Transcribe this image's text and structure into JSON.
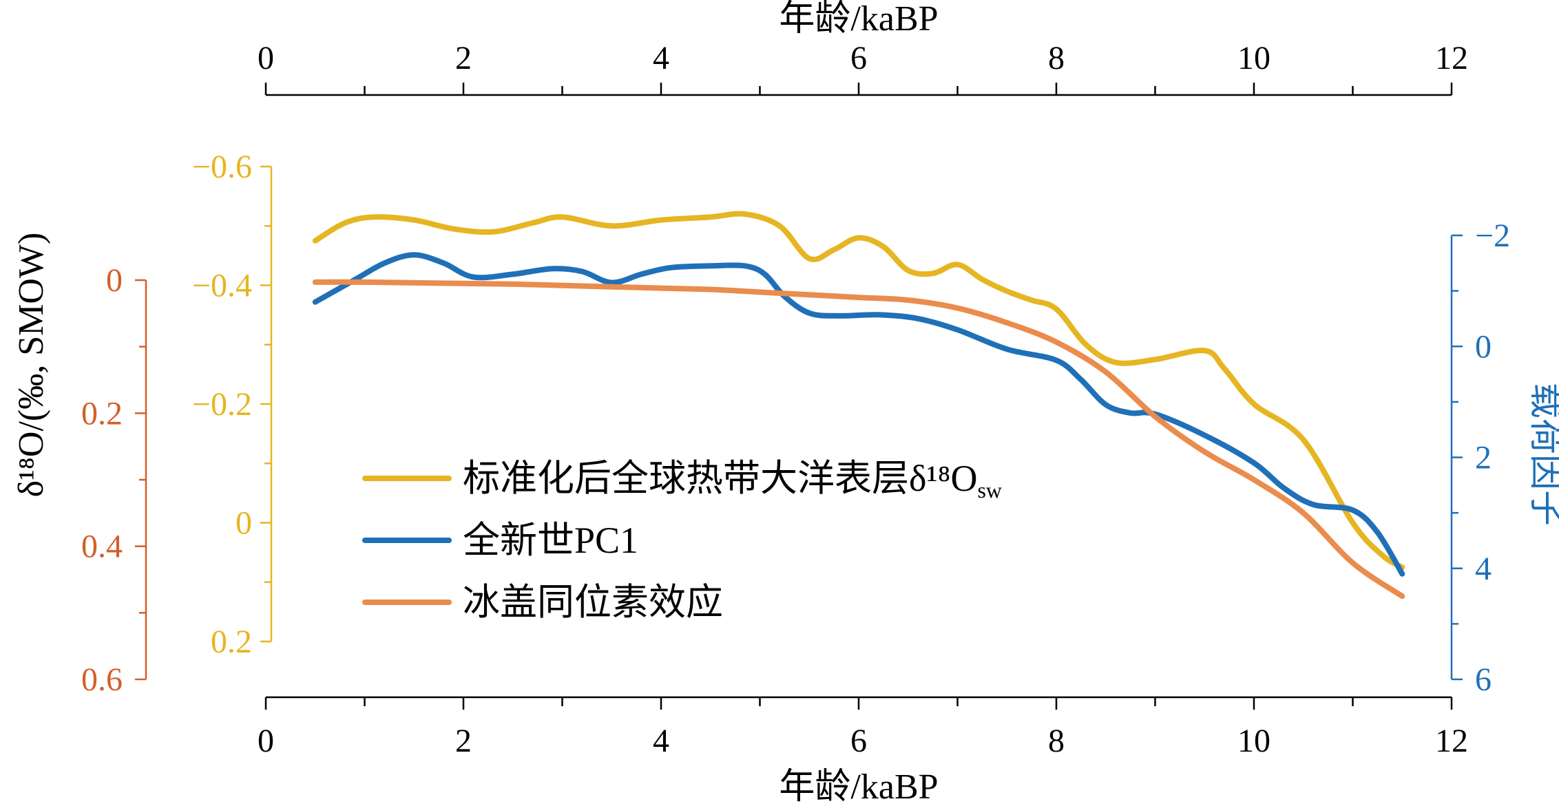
{
  "chart_data": {
    "type": "line",
    "x_axis": {
      "label": "年龄/kaBP",
      "range": [
        0,
        12
      ],
      "ticks": [
        0,
        2,
        4,
        6,
        8,
        10,
        12
      ]
    },
    "y_axes": {
      "ice": {
        "color": "#d35f2a",
        "range": [
          0,
          0.6
        ],
        "ticks": [
          0,
          0.2,
          0.4,
          0.6
        ],
        "tick_labels": [
          "0",
          "0.2",
          "0.4",
          "0.6"
        ],
        "inverted": true
      },
      "sst": {
        "color": "#e6b522",
        "range": [
          -0.6,
          0.2
        ],
        "ticks": [
          -0.6,
          -0.4,
          -0.2,
          0,
          0.2
        ],
        "tick_labels": [
          "−0.6",
          "−0.4",
          "−0.2",
          "0",
          "0.2"
        ],
        "inverted": true
      },
      "pc": {
        "color": "#1f70b8",
        "range": [
          -2,
          6
        ],
        "ticks": [
          -2,
          0,
          2,
          4,
          6
        ],
        "tick_labels": [
          "−2",
          "0",
          "2",
          "4",
          "6"
        ],
        "inverted": true,
        "label": "载荷因子"
      }
    },
    "shared_ylabel": "δ¹⁸O/(‰, SMOW)",
    "series": [
      {
        "key": "sst",
        "axis": "sst",
        "color": "#e6b522",
        "x": [
          0.5,
          0.8,
          1.1,
          1.5,
          1.9,
          2.3,
          2.7,
          3.0,
          3.5,
          4.0,
          4.5,
          4.85,
          5.2,
          5.5,
          5.75,
          6.0,
          6.25,
          6.5,
          6.75,
          7.0,
          7.25,
          7.5,
          7.75,
          8.0,
          8.3,
          8.6,
          9.0,
          9.5,
          9.7,
          10.0,
          10.5,
          11.0,
          11.3,
          11.5
        ],
        "y": [
          -0.475,
          -0.505,
          -0.515,
          -0.51,
          -0.495,
          -0.49,
          -0.505,
          -0.515,
          -0.5,
          -0.51,
          -0.515,
          -0.52,
          -0.5,
          -0.445,
          -0.46,
          -0.48,
          -0.465,
          -0.425,
          -0.42,
          -0.435,
          -0.41,
          -0.39,
          -0.375,
          -0.36,
          -0.3,
          -0.27,
          -0.275,
          -0.29,
          -0.26,
          -0.2,
          -0.14,
          -0.0,
          0.055,
          0.075
        ]
      },
      {
        "key": "pc",
        "axis": "pc",
        "color": "#1f70b8",
        "x": [
          0.5,
          0.9,
          1.2,
          1.5,
          1.8,
          2.1,
          2.5,
          2.9,
          3.2,
          3.5,
          3.8,
          4.1,
          4.5,
          4.85,
          5.05,
          5.25,
          5.5,
          5.8,
          6.2,
          6.6,
          7.0,
          7.5,
          8.0,
          8.25,
          8.5,
          8.75,
          9.0,
          9.5,
          10.0,
          10.3,
          10.6,
          11.0,
          11.25,
          11.5
        ],
        "y": [
          -0.8,
          -1.2,
          -1.5,
          -1.65,
          -1.5,
          -1.25,
          -1.3,
          -1.4,
          -1.35,
          -1.15,
          -1.3,
          -1.42,
          -1.45,
          -1.45,
          -1.3,
          -0.9,
          -0.6,
          -0.55,
          -0.57,
          -0.5,
          -0.3,
          0.05,
          0.25,
          0.6,
          1.05,
          1.2,
          1.22,
          1.6,
          2.1,
          2.55,
          2.85,
          2.95,
          3.35,
          4.1
        ]
      },
      {
        "key": "ice",
        "axis": "ice",
        "color": "#ea8c4d",
        "x": [
          0.5,
          1.0,
          1.5,
          2.0,
          2.5,
          3.0,
          3.5,
          4.0,
          4.5,
          5.0,
          5.5,
          6.0,
          6.5,
          7.0,
          7.5,
          8.0,
          8.5,
          9.0,
          9.5,
          10.0,
          10.5,
          11.0,
          11.5
        ],
        "y": [
          0.003,
          0.003,
          0.004,
          0.005,
          0.006,
          0.008,
          0.01,
          0.012,
          0.014,
          0.018,
          0.022,
          0.026,
          0.03,
          0.042,
          0.064,
          0.093,
          0.138,
          0.205,
          0.258,
          0.3,
          0.35,
          0.425,
          0.475
        ]
      }
    ],
    "legend": [
      {
        "label": "标准化后全球热带大洋表层δ¹⁸O",
        "subscript": "sw",
        "color": "#e6b522"
      },
      {
        "label": "全新世PC1",
        "subscript": "",
        "color": "#1f70b8"
      },
      {
        "label": "冰盖同位素效应",
        "subscript": "",
        "color": "#ea8c4d"
      }
    ]
  }
}
